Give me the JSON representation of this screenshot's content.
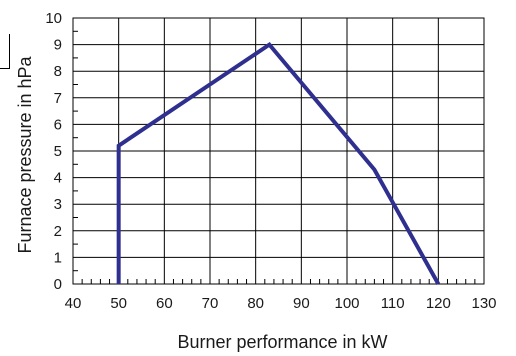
{
  "chart_data": {
    "type": "line",
    "xlabel": "Burner performance in kW",
    "ylabel": "Furnace pressure in hPa",
    "xlim": [
      40,
      130
    ],
    "ylim": [
      0,
      10
    ],
    "x_ticks": [
      "40",
      "50",
      "60",
      "70",
      "80",
      "90",
      "100",
      "110",
      "120",
      "130"
    ],
    "y_ticks": [
      "0",
      "1",
      "2",
      "3",
      "4",
      "5",
      "6",
      "7",
      "8",
      "9",
      "10"
    ],
    "grid": true,
    "series": [
      {
        "points": [
          [
            50,
            0
          ],
          [
            50,
            5.2
          ],
          [
            83,
            9.0
          ],
          [
            106,
            4.3
          ],
          [
            120,
            0
          ]
        ],
        "color": "#2e2f8f"
      }
    ]
  }
}
